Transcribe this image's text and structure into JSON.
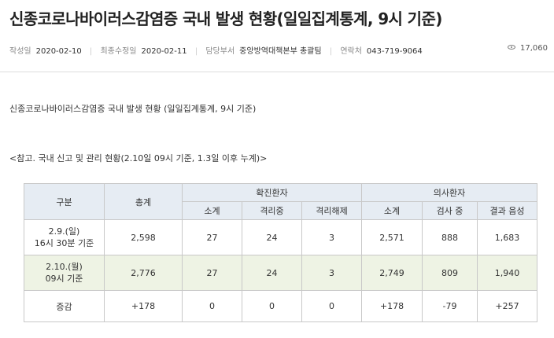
{
  "page": {
    "title": "신종코로나바이러스감염증 국내 발생 현황(일일집계통계, 9시 기준)"
  },
  "meta": {
    "created_label": "작성일",
    "created_value": "2020-02-10",
    "modified_label": "최종수정일",
    "modified_value": "2020-02-11",
    "dept_label": "담당부서",
    "dept_value": "중앙방역대책본부 총괄팀",
    "contact_label": "연락처",
    "contact_value": "043-719-9064",
    "views": "17,060"
  },
  "body": {
    "subtitle": "신종코로나바이러스감염증 국내 발생 현황 (일일집계통계, 9시 기준)",
    "note": "<참고. 국내 신고 및 관리 현황(2.10일 09시 기준, 1.3일 이후 누계)>"
  },
  "table": {
    "headers": {
      "category": "구분",
      "total": "총계",
      "confirmed": "확진환자",
      "suspected": "의사환자",
      "sub": [
        "소계",
        "격리중",
        "격리해제",
        "소계",
        "검사 중",
        "결과 음성"
      ]
    },
    "rows": [
      {
        "label_line1": "2.9.(일)",
        "label_line2": "16시 30분 기준",
        "cells": [
          "2,598",
          "27",
          "24",
          "3",
          "2,571",
          "888",
          "1,683"
        ]
      },
      {
        "label_line1": "2.10.(월)",
        "label_line2": "09시 기준",
        "cells": [
          "2,776",
          "27",
          "24",
          "3",
          "2,749",
          "809",
          "1,940"
        ]
      },
      {
        "label_line1": "증감",
        "label_line2": "",
        "cells": [
          "+178",
          "0",
          "0",
          "0",
          "+178",
          "-79",
          "+257"
        ]
      }
    ]
  }
}
